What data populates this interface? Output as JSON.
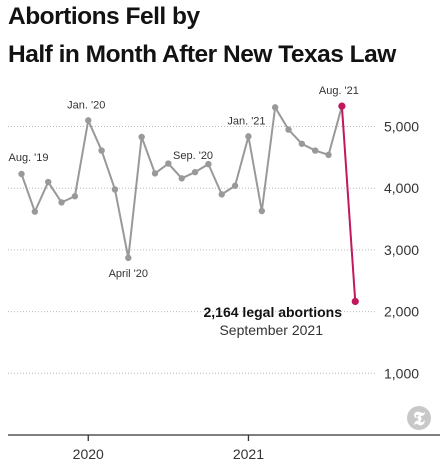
{
  "header": {
    "title_line_1": "Abortions Fell by",
    "title_line_2": "Half in Month After New Texas Law"
  },
  "logo": {
    "name": "nyt-logo-icon",
    "glyph": "𝕿"
  },
  "colors": {
    "series": "#999999",
    "highlight": "#c1185b",
    "gridline": "#bbbbbb",
    "axis": "#333333"
  },
  "chart_data": {
    "type": "line",
    "title": "Abortions Fell by Half in Month After New Texas Law",
    "x_ticks": [
      "2020",
      "2021"
    ],
    "y_ticks": [
      "1,000",
      "2,000",
      "3,000",
      "4,000",
      "5,000"
    ],
    "y_tick_values": [
      1000,
      2000,
      3000,
      4000,
      5000
    ],
    "ylim": [
      0,
      5600
    ],
    "grid": "horizontal dotted",
    "points": [
      {
        "month": "2019-08",
        "value": 4230,
        "label": "Aug. '19"
      },
      {
        "month": "2019-09",
        "value": 3620
      },
      {
        "month": "2019-10",
        "value": 4100
      },
      {
        "month": "2019-11",
        "value": 3770
      },
      {
        "month": "2019-12",
        "value": 3870
      },
      {
        "month": "2020-01",
        "value": 5100,
        "label": "Jan. '20"
      },
      {
        "month": "2020-02",
        "value": 4610
      },
      {
        "month": "2020-03",
        "value": 3980
      },
      {
        "month": "2020-04",
        "value": 2870,
        "label": "April '20"
      },
      {
        "month": "2020-05",
        "value": 4830
      },
      {
        "month": "2020-06",
        "value": 4240
      },
      {
        "month": "2020-07",
        "value": 4400
      },
      {
        "month": "2020-08",
        "value": 4160
      },
      {
        "month": "2020-09",
        "value": 4260,
        "label": "Sep. '20"
      },
      {
        "month": "2020-10",
        "value": 4390
      },
      {
        "month": "2020-11",
        "value": 3900
      },
      {
        "month": "2020-12",
        "value": 4040
      },
      {
        "month": "2021-01",
        "value": 4840,
        "label": "Jan. '21"
      },
      {
        "month": "2021-02",
        "value": 3630
      },
      {
        "month": "2021-03",
        "value": 5310
      },
      {
        "month": "2021-04",
        "value": 4950
      },
      {
        "month": "2021-05",
        "value": 4720
      },
      {
        "month": "2021-06",
        "value": 4610
      },
      {
        "month": "2021-07",
        "value": 4540
      },
      {
        "month": "2021-08",
        "value": 5330,
        "label": "Aug. '21"
      },
      {
        "month": "2021-09",
        "value": 2164
      }
    ],
    "annotation": {
      "value_text": "2,164 legal abortions",
      "period_text": "September 2021"
    }
  }
}
